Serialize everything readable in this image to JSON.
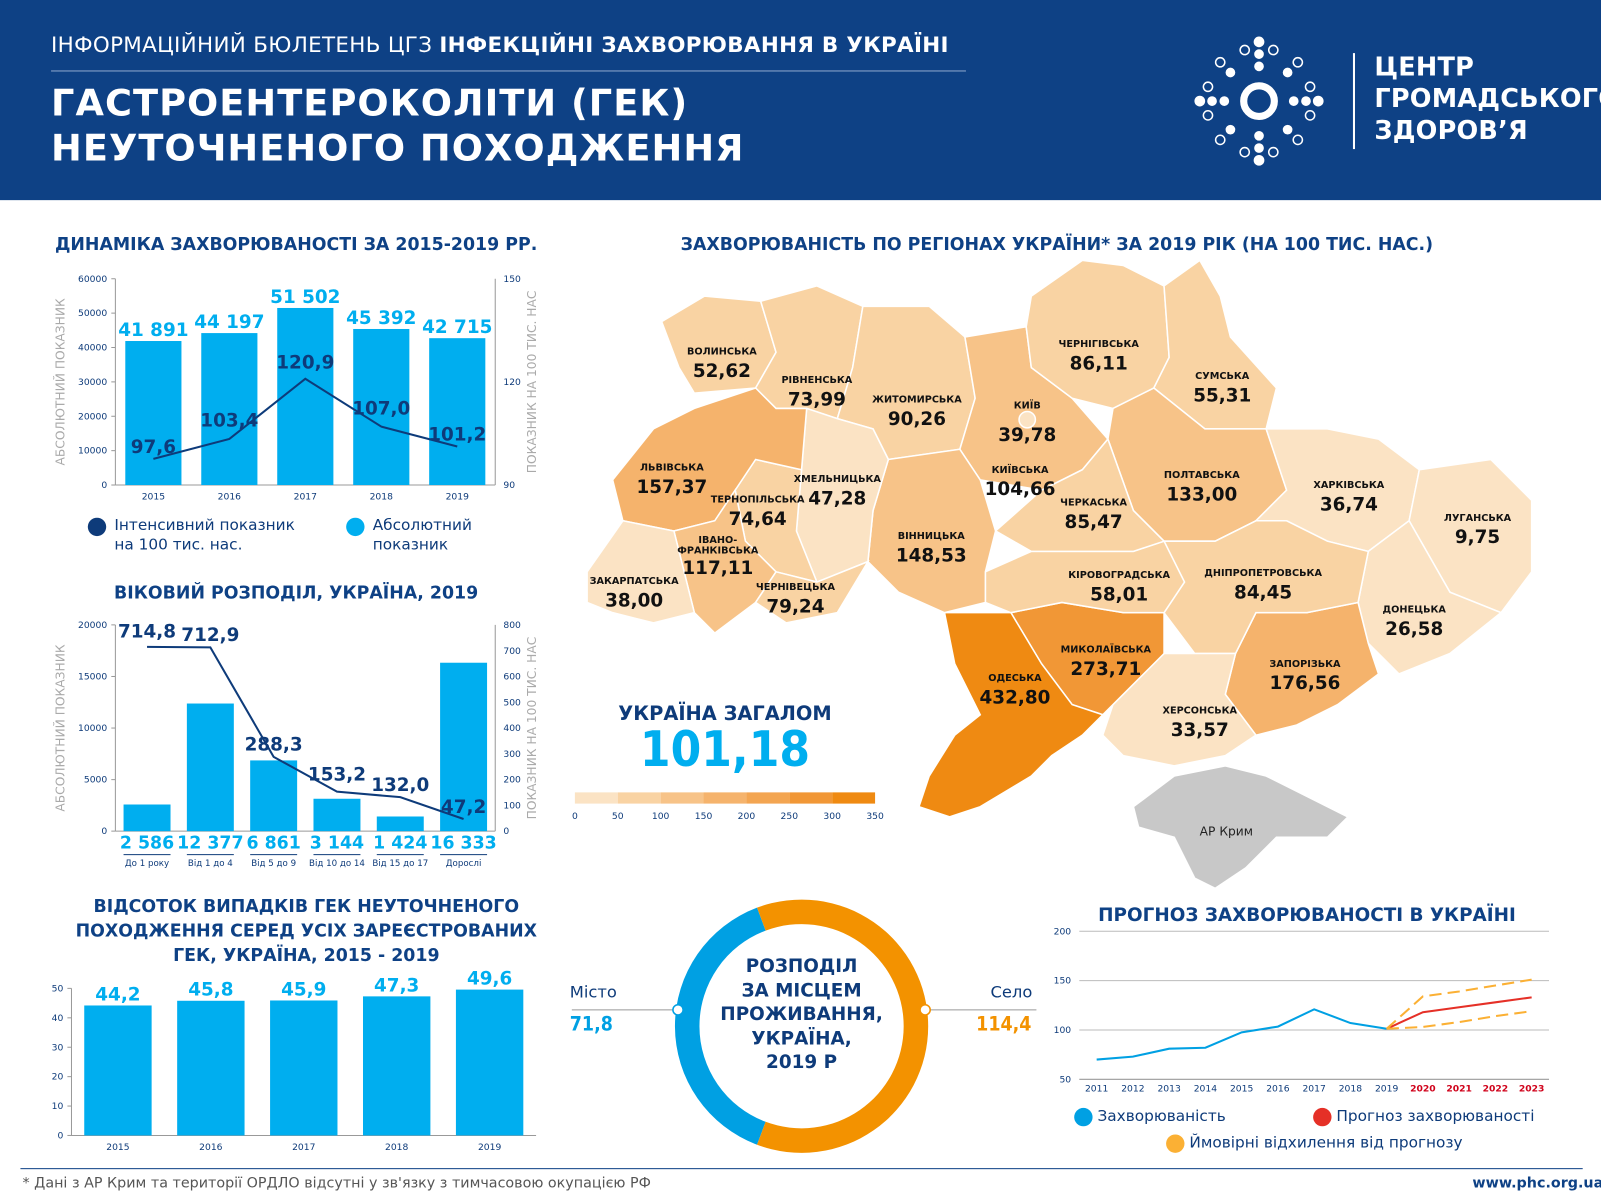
{
  "header": {
    "bulletin": "ІНФОРМАЦІЙНИЙ БЮЛЕТЕНЬ ЦГЗ",
    "bulletin_bold": "ІНФЕКЦІЙНІ ЗАХВОРЮВАННЯ В УКРАЇНІ",
    "title_line1": "ГАСТРОЕНТЕРОКОЛІТИ (ГЕК)",
    "title_line2": "НЕУТОЧНЕНОГО ПОХОДЖЕННЯ",
    "logo_line1": "ЦЕНТР",
    "logo_line2": "ГРОМАДСЬКОГО",
    "logo_line3": "ЗДОРОВ’Я",
    "bg_color": "#0e4185"
  },
  "colors": {
    "bar": "#00aeef",
    "line": "#0e3b7a",
    "orange": "#f39200",
    "forecast": "#e53027",
    "deviation": "#fbb034"
  },
  "chart_data": [
    {
      "id": "dynamics",
      "type": "bar",
      "title": "ДИНАМІКА ЗАХВОРЮВАНОСТІ ЗА 2015-2019 РР.",
      "categories": [
        "2015",
        "2016",
        "2017",
        "2018",
        "2019"
      ],
      "ylabel": "АБСОЛЮТНИЙ ПОКАЗНИК",
      "ylabel_right": "ПОКАЗНИК НА 100 ТИС. НАС",
      "ylim": [
        0,
        60000
      ],
      "yticks": [
        "0",
        "10000",
        "20000",
        "30000",
        "40000",
        "50000",
        "60000"
      ],
      "ylim_right": [
        90,
        150
      ],
      "yticks_right": [
        "90",
        "120",
        "150"
      ],
      "series": [
        {
          "name": "Абсолютний показник",
          "kind": "bar",
          "values": [
            41891,
            44197,
            51502,
            45392,
            42715
          ],
          "labels": [
            "41 891",
            "44 197",
            "51 502",
            "45 392",
            "42 715"
          ]
        },
        {
          "name": "Інтенсивний показник на 100 тис. нас.",
          "kind": "line",
          "values": [
            97.6,
            103.4,
            120.9,
            107.0,
            101.2
          ],
          "labels": [
            "97,6",
            "103,4",
            "120,9",
            "107,0",
            "101,2"
          ]
        }
      ],
      "legend": [
        {
          "line1": "Інтенсивний показник",
          "line2": "на 100 тис. нас."
        },
        {
          "line1": "Абсолютний",
          "line2": "показник"
        }
      ]
    },
    {
      "id": "age",
      "type": "bar",
      "title": "ВІКОВИЙ РОЗПОДІЛ, УКРАЇНА, 2019",
      "categories": [
        "До 1 року",
        "Від 1 до 4",
        "Від 5 до 9",
        "Від 10 до 14",
        "Від 15 до 17",
        "Дорослі"
      ],
      "ylabel": "АБСОЛЮТНИЙ ПОКАЗНИК",
      "ylabel_right": "ПОКАЗНИК НА 100 ТИС. НАС",
      "ylim": [
        0,
        20000
      ],
      "yticks": [
        "0",
        "5000",
        "10000",
        "15000",
        "20000"
      ],
      "ylim_right": [
        0,
        800
      ],
      "yticks_right": [
        "0",
        "100",
        "200",
        "300",
        "400",
        "500",
        "600",
        "700",
        "800"
      ],
      "series": [
        {
          "kind": "bar",
          "values": [
            2586,
            12377,
            6861,
            3144,
            1424,
            16333
          ],
          "labels": [
            "2 586",
            "12 377",
            "6 861",
            "3 144",
            "1 424",
            "16 333"
          ]
        },
        {
          "kind": "line",
          "values": [
            714.8,
            712.9,
            288.3,
            153.2,
            132.0,
            47.2
          ],
          "labels": [
            "714,8",
            "712,9",
            "288,3",
            "153,2",
            "132,0",
            "47,2"
          ]
        }
      ]
    },
    {
      "id": "percent",
      "type": "bar",
      "title_line1": "ВІДСОТОК ВИПАДКІВ ГЕК НЕУТОЧНЕНОГО",
      "title_line2": "ПОХОДЖЕННЯ СЕРЕД УСІХ ЗАРЕЄСТРОВАНИХ",
      "title_line3": "ГЕК, УКРАЇНА, 2015 - 2019",
      "categories": [
        "2015",
        "2016",
        "2017",
        "2018",
        "2019"
      ],
      "ylim": [
        0,
        50
      ],
      "yticks": [
        "0",
        "10",
        "20",
        "30",
        "40",
        "50"
      ],
      "values": [
        44.2,
        45.8,
        45.9,
        47.3,
        49.6
      ],
      "labels": [
        "44,2",
        "45,8",
        "45,9",
        "47,3",
        "49,6"
      ]
    },
    {
      "id": "residence",
      "type": "pie",
      "title_line1": "РОЗПОДІЛ",
      "title_line2": "ЗА МІСЦЕМ",
      "title_line3": "ПРОЖИВАННЯ,",
      "title_line4": "УКРАЇНА,",
      "title_line5": "2019 Р",
      "slices": [
        {
          "name": "Місто",
          "value": 71.8,
          "label": "71,8",
          "color": "#00a0e3"
        },
        {
          "name": "Село",
          "value": 114.4,
          "label": "114,4",
          "color": "#f39200"
        }
      ]
    },
    {
      "id": "forecast",
      "type": "line",
      "title": "ПРОГНОЗ ЗАХВОРЮВАНОСТІ В УКРАЇНІ",
      "x": [
        "2011",
        "2012",
        "2013",
        "2014",
        "2015",
        "2016",
        "2017",
        "2018",
        "2019",
        "2020",
        "2021",
        "2022",
        "2023"
      ],
      "ylim": [
        50,
        200
      ],
      "yticks": [
        "50",
        "100",
        "150",
        "200"
      ],
      "grid": true,
      "series": [
        {
          "name": "Захворюваність",
          "x": [
            "2011",
            "2012",
            "2013",
            "2014",
            "2015",
            "2016",
            "2017",
            "2018",
            "2019"
          ],
          "values": [
            70,
            73,
            81,
            82,
            97.6,
            103.4,
            120.9,
            107.0,
            101.2
          ],
          "color": "#00a0e3"
        },
        {
          "name": "Прогноз захворюваності",
          "x": [
            "2019",
            "2020",
            "2021",
            "2022",
            "2023"
          ],
          "values": [
            101.2,
            118,
            123,
            128,
            133
          ],
          "color": "#e53027"
        },
        {
          "name": "Ймовірні відхилення від прогнозу",
          "x": [
            "2019",
            "2020",
            "2021",
            "2022",
            "2023"
          ],
          "values": [
            101.2,
            134,
            139,
            145,
            151
          ],
          "color": "#fbb034",
          "dashed": true
        },
        {
          "name": "",
          "x": [
            "2019",
            "2020",
            "2021",
            "2022",
            "2023"
          ],
          "values": [
            101.2,
            103,
            108,
            114,
            119
          ],
          "color": "#fbb034",
          "dashed": true
        }
      ]
    },
    {
      "id": "map",
      "type": "heatmap",
      "title": "ЗАХВОРЮВАНІСТЬ ПО РЕГІОНАХ УКРАЇНИ* ЗА 2019 РІК (НА 100 ТИС. НАС.)",
      "scale": {
        "ticks": [
          "0",
          "50",
          "100",
          "150",
          "200",
          "250",
          "300",
          "350"
        ],
        "colors": [
          "#fbe3c4",
          "#f9d3a3",
          "#f7c388",
          "#f5b36c",
          "#f3a551",
          "#f19736",
          "#ef8a12"
        ]
      },
      "total_label": "УКРАЇНА ЗАГАЛОМ",
      "total_value": "101,18",
      "regions": [
        {
          "id": "volyn",
          "name": "ВОЛИНСЬКА",
          "value": 52.62,
          "label": "52,62"
        },
        {
          "id": "rivne",
          "name": "РІВНЕНСЬКА",
          "value": 73.99,
          "label": "73,99"
        },
        {
          "id": "zhytomyr",
          "name": "ЖИТОМИРСЬКА",
          "value": 90.26,
          "label": "90,26"
        },
        {
          "id": "kyiv_city",
          "name": "КИЇВ",
          "value": 39.78,
          "label": "39,78"
        },
        {
          "id": "kyiv",
          "name": "КИЇВСЬКА",
          "value": 104.66,
          "label": "104,66"
        },
        {
          "id": "chernihiv",
          "name": "ЧЕРНІГІВСЬКА",
          "value": 86.11,
          "label": "86,11"
        },
        {
          "id": "sumy",
          "name": "СУМСЬКА",
          "value": 55.31,
          "label": "55,31"
        },
        {
          "id": "poltava",
          "name": "ПОЛТАВСЬКА",
          "value": 133.0,
          "label": "133,00"
        },
        {
          "id": "kharkiv",
          "name": "ХАРКІВСЬКА",
          "value": 36.74,
          "label": "36,74"
        },
        {
          "id": "luhansk",
          "name": "ЛУГАНСЬКА",
          "value": 9.75,
          "label": "9,75"
        },
        {
          "id": "donetsk",
          "name": "ДОНЕЦЬКА",
          "value": 26.58,
          "label": "26,58"
        },
        {
          "id": "zaporizhzhia",
          "name": "ЗАПОРІЗЬКА",
          "value": 176.56,
          "label": "176,56"
        },
        {
          "id": "dnipro",
          "name": "ДНІПРОПЕТРОВСЬКА",
          "value": 84.45,
          "label": "84,45"
        },
        {
          "id": "kherson",
          "name": "ХЕРСОНСЬКА",
          "value": 33.57,
          "label": "33,57"
        },
        {
          "id": "mykolaiv",
          "name": "МИКОЛАЇВСЬКА",
          "value": 273.71,
          "label": "273,71"
        },
        {
          "id": "odesa",
          "name": "ОДЕСЬКА",
          "value": 432.8,
          "label": "432,80"
        },
        {
          "id": "kirovohrad",
          "name": "КІРОВОГРАДСЬКА",
          "value": 58.01,
          "label": "58,01"
        },
        {
          "id": "cherkasy",
          "name": "ЧЕРКАСЬКА",
          "value": 85.47,
          "label": "85,47"
        },
        {
          "id": "vinnytsia",
          "name": "ВІННИЦЬКА",
          "value": 148.53,
          "label": "148,53"
        },
        {
          "id": "khmelnytskyi",
          "name": "ХМЕЛЬНИЦЬКА",
          "value": 47.28,
          "label": "47,28"
        },
        {
          "id": "ternopil",
          "name": "ТЕРНОПІЛЬСЬКА",
          "value": 74.64,
          "label": "74,64"
        },
        {
          "id": "lviv",
          "name": "ЛЬВІВСЬКА",
          "value": 157.37,
          "label": "157,37"
        },
        {
          "id": "ivano_frankivsk",
          "name": "ІВАНО-ФРАНКІВСЬКА",
          "name_line1": "ІВАНО-",
          "name_line2": "ФРАНКІВСЬКА",
          "value": 117.11,
          "label": "117,11"
        },
        {
          "id": "zakarpattia",
          "name": "ЗАКАРПАТСЬКА",
          "value": 38.0,
          "label": "38,00"
        },
        {
          "id": "chernivtsi",
          "name": "ЧЕРНІВЕЦЬКА",
          "value": 79.24,
          "label": "79,24"
        },
        {
          "id": "crimea",
          "name": "АР Крим",
          "value": null
        }
      ]
    }
  ],
  "footer": {
    "note": "* Дані з АР Крим та території ОРДЛО відсутні у зв'язку з тимчасовою окупацією РФ",
    "url": "www.phc.org.ua"
  }
}
